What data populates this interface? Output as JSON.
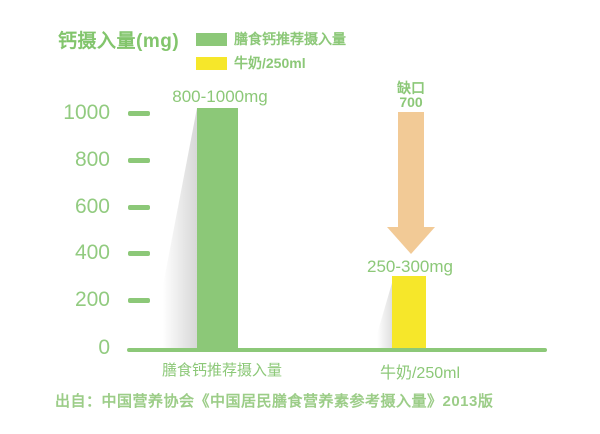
{
  "chart_data": {
    "type": "bar",
    "title": "钙摄入量(mg)",
    "categories": [
      "膳食钙推荐摄入量",
      "牛奶/250ml"
    ],
    "values": [
      1000,
      300
    ],
    "bar_labels": [
      "800-1000mg",
      "250-300mg"
    ],
    "bar_colors": [
      "#8cc878",
      "#f6e72a"
    ],
    "y_ticks": [
      "1000",
      "800",
      "600",
      "400",
      "200",
      "0"
    ],
    "ylim": [
      0,
      1000
    ],
    "grid": false,
    "legend_position": "top-center",
    "legend": [
      {
        "label": "膳食钙推荐摄入量",
        "color": "#8cc878"
      },
      {
        "label": "牛奶/250ml",
        "color": "#f6e72a"
      }
    ],
    "annotation": {
      "label": "缺口",
      "value": "700",
      "arrow_color": "#f2ca96",
      "direction": "down"
    },
    "source": "出自：中国营养协会《中国居民膳食营养素参考摄入量》2013版",
    "text_color": "#8cc878",
    "axis_color": "#8cc878"
  }
}
